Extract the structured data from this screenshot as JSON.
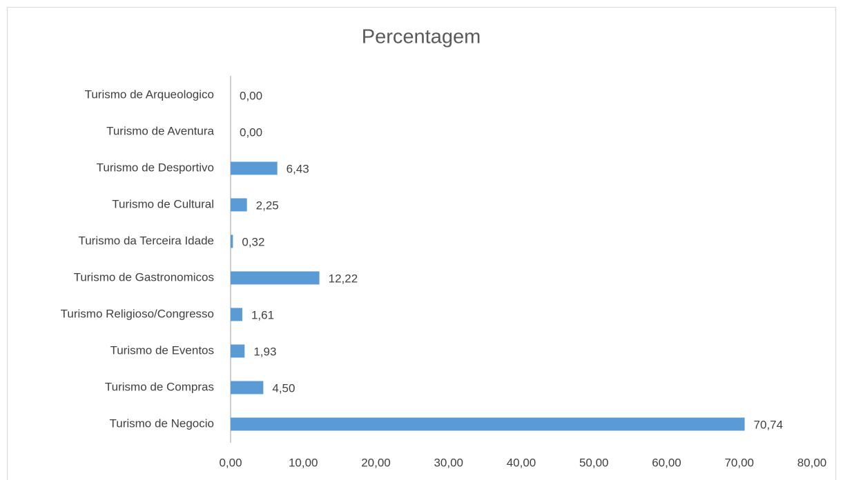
{
  "chart_data": {
    "type": "bar",
    "orientation": "horizontal",
    "title": "Percentagem",
    "categories": [
      "Turismo de Arqueologico",
      "Turismo de Aventura",
      "Turismo de Desportivo",
      "Turismo de Cultural",
      "Turismo da Terceira Idade",
      "Turismo de Gastronomicos",
      "Turismo Religioso/Congresso",
      "Turismo de Eventos",
      "Turismo de Compras",
      "Turismo de Negocio"
    ],
    "values": [
      0,
      0,
      6.43,
      2.25,
      0.32,
      12.22,
      1.61,
      1.93,
      4.5,
      70.74
    ],
    "value_labels": [
      "0,00",
      "0,00",
      "6,43",
      "2,25",
      "0,32",
      "12,22",
      "1,61",
      "1,93",
      "4,50",
      "70,74"
    ],
    "color": "#5b9bd5",
    "xlim": [
      0,
      80
    ],
    "xticks": [
      {
        "value": 0,
        "label": "0,00"
      },
      {
        "value": 10,
        "label": "10,00"
      },
      {
        "value": 20,
        "label": "20,00"
      },
      {
        "value": 30,
        "label": "30,00"
      },
      {
        "value": 40,
        "label": "40,00"
      },
      {
        "value": 50,
        "label": "50,00"
      },
      {
        "value": 60,
        "label": "60,00"
      },
      {
        "value": 70,
        "label": "70,00"
      },
      {
        "value": 80,
        "label": "80,00"
      }
    ],
    "grid": false
  }
}
